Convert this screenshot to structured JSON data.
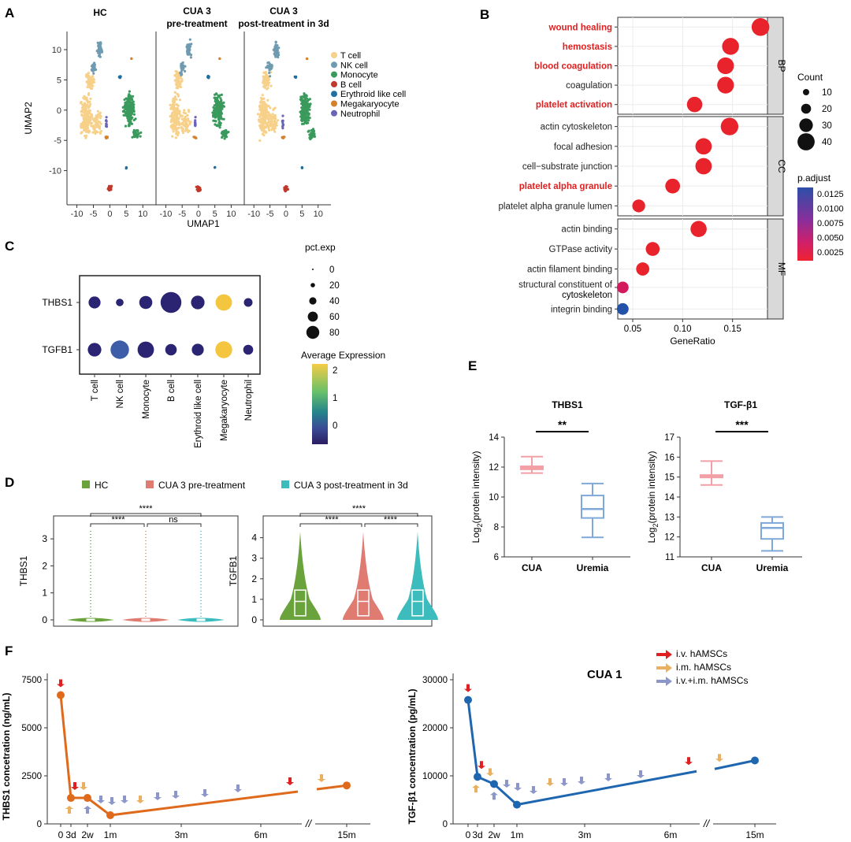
{
  "panels": [
    "A",
    "B",
    "C",
    "D",
    "E",
    "F"
  ],
  "panelA": {
    "titles": [
      "HC",
      "CUA 3",
      "pre-treatment",
      "CUA 3",
      "post-treatment in 3d"
    ],
    "xlabel": "UMAP1",
    "ylabel": "UMAP2",
    "yticks": [
      "10",
      "5",
      "0",
      "-5",
      "-10"
    ],
    "xticks": [
      "-10",
      "-5",
      "0",
      "5",
      "10"
    ],
    "legend": [
      {
        "label": "T cell",
        "color": "#f7d08a"
      },
      {
        "label": "NK cell",
        "color": "#6e9bb0"
      },
      {
        "label": "Monocyte",
        "color": "#3a9a5d"
      },
      {
        "label": "B cell",
        "color": "#c0392b"
      },
      {
        "label": "Erythroid like cell",
        "color": "#1f6fa0"
      },
      {
        "label": "Megakaryocyte",
        "color": "#d3822b"
      },
      {
        "label": "Neutrophil",
        "color": "#6b63b5"
      }
    ]
  },
  "chart_data": [
    {
      "id": "B",
      "type": "scatter",
      "xlabel": "GeneRatio",
      "xticks": [
        "0.05",
        "0.10",
        "0.15"
      ],
      "xlim": [
        0.035,
        0.185
      ],
      "facets": [
        "BP",
        "CC",
        "MF"
      ],
      "terms": [
        {
          "label": "wound healing",
          "facet": "BP",
          "x": 0.178,
          "count": 38,
          "p": 0.0005,
          "red": true
        },
        {
          "label": "hemostasis",
          "facet": "BP",
          "x": 0.148,
          "count": 33,
          "p": 0.0005,
          "red": true
        },
        {
          "label": "blood coagulation",
          "facet": "BP",
          "x": 0.143,
          "count": 32,
          "p": 0.0005,
          "red": true
        },
        {
          "label": "coagulation",
          "facet": "BP",
          "x": 0.143,
          "count": 32,
          "p": 0.0005,
          "red": false
        },
        {
          "label": "platelet activation",
          "facet": "BP",
          "x": 0.112,
          "count": 25,
          "p": 0.0006,
          "red": true
        },
        {
          "label": "actin cytoskeleton",
          "facet": "CC",
          "x": 0.147,
          "count": 37,
          "p": 0.0005,
          "red": false
        },
        {
          "label": "focal adhesion",
          "facet": "CC",
          "x": 0.121,
          "count": 30,
          "p": 0.0005,
          "red": false
        },
        {
          "label": "cell−substrate junction",
          "facet": "CC",
          "x": 0.121,
          "count": 30,
          "p": 0.0005,
          "red": false
        },
        {
          "label": "platelet alpha granule",
          "facet": "CC",
          "x": 0.09,
          "count": 22,
          "p": 0.0006,
          "red": true
        },
        {
          "label": "platelet alpha granule lumen",
          "facet": "CC",
          "x": 0.056,
          "count": 14,
          "p": 0.0008,
          "red": false
        },
        {
          "label": "actin binding",
          "facet": "MF",
          "x": 0.116,
          "count": 29,
          "p": 0.0005,
          "red": false
        },
        {
          "label": "GTPase activity",
          "facet": "MF",
          "x": 0.07,
          "count": 18,
          "p": 0.0008,
          "red": false
        },
        {
          "label": "actin filament binding",
          "facet": "MF",
          "x": 0.06,
          "count": 15,
          "p": 0.001,
          "red": false
        },
        {
          "label": "structural constituent of",
          "facet": "MF",
          "x": 0.04,
          "count": 10,
          "p": 0.003,
          "red": false
        },
        {
          "label": "integrin binding",
          "facet": "MF",
          "x": 0.04,
          "count": 10,
          "p": 0.0125,
          "red": false
        }
      ],
      "term_extra": "cytoskeleton",
      "count_legend": {
        "title": "Count",
        "values": [
          "10",
          "20",
          "30",
          "40"
        ]
      },
      "padj_legend": {
        "title": "p.adjust",
        "values": [
          "0.0125",
          "0.0100",
          "0.0075",
          "0.0050",
          "0.0025"
        ]
      }
    },
    {
      "id": "C",
      "type": "dotplot",
      "genes": [
        "THBS1",
        "TGFB1"
      ],
      "cells": [
        "T cell",
        "NK cell",
        "Monocyte",
        "B cell",
        "Erythroid like cell",
        "Megakaryocyte",
        "Neutrophil"
      ],
      "pct": [
        [
          20,
          5,
          25,
          80,
          28,
          45,
          8
        ],
        [
          28,
          60,
          45,
          18,
          20,
          48,
          12
        ]
      ],
      "avg": [
        [
          -0.3,
          -0.4,
          -0.1,
          -0.5,
          -0.2,
          2.0,
          -0.4
        ],
        [
          -0.2,
          0.0,
          -0.3,
          -0.5,
          -0.1,
          2.0,
          -0.5
        ]
      ],
      "pct_legend": {
        "title": "pct.exp",
        "values": [
          "0",
          "20",
          "40",
          "60",
          "80"
        ]
      },
      "avg_legend": {
        "title": "Average Expression",
        "ticks": [
          "2",
          "1",
          "0"
        ]
      }
    },
    {
      "id": "D",
      "type": "violin",
      "legend": [
        {
          "label": "HC",
          "color": "#6aa23b"
        },
        {
          "label": "CUA 3 pre-treatment",
          "color": "#e07b72"
        },
        {
          "label": "CUA 3 post-treatment in 3d",
          "color": "#3cbcbc"
        }
      ],
      "plots": [
        {
          "ylabel": "THBS1",
          "yticks": [
            "3",
            "2",
            "1",
            "0"
          ],
          "ylim": [
            0,
            4.2
          ],
          "sig": [
            "****",
            "ns",
            "****"
          ]
        },
        {
          "ylabel": "TGFB1",
          "yticks": [
            "4",
            "3",
            "2",
            "1",
            "0"
          ],
          "ylim": [
            0,
            4.7
          ],
          "sig": [
            "****",
            "****",
            "****"
          ]
        }
      ]
    },
    {
      "id": "E",
      "type": "box",
      "plots": [
        {
          "title": "THBS1",
          "ylabel": "Log",
          "ylabel_sub": "2",
          "ylabel_rest": "(protein intensity)",
          "yticks": [
            "14",
            "12",
            "10",
            "8",
            "6"
          ],
          "ylim": [
            6,
            14
          ],
          "sig": "**",
          "groups": [
            {
              "name": "CUA",
              "min": 11.6,
              "q1": 11.85,
              "med": 11.95,
              "q3": 12.05,
              "max": 12.7,
              "color": "#f2a0a6"
            },
            {
              "name": "Uremia",
              "min": 7.3,
              "q1": 8.6,
              "med": 9.2,
              "q3": 10.1,
              "max": 10.9,
              "color": "#7ea9d8"
            }
          ]
        },
        {
          "title": "TGF-β1",
          "ylabel": "Log",
          "ylabel_sub": "2",
          "ylabel_rest": "(protein intensity)",
          "yticks": [
            "17",
            "16",
            "15",
            "14",
            "13",
            "12",
            "11"
          ],
          "ylim": [
            11,
            17
          ],
          "sig": "***",
          "groups": [
            {
              "name": "CUA",
              "min": 14.6,
              "q1": 14.98,
              "med": 15.05,
              "q3": 15.1,
              "max": 15.8,
              "color": "#f2a0a6"
            },
            {
              "name": "Uremia",
              "min": 11.3,
              "q1": 11.9,
              "med": 12.45,
              "q3": 12.7,
              "max": 13.0,
              "color": "#7ea9d8"
            }
          ]
        }
      ]
    },
    {
      "id": "F",
      "type": "line",
      "title": "CUA 1",
      "legend": [
        {
          "label": "i.v. hAMSCs",
          "color": "#e02020"
        },
        {
          "label": "i.m. hAMSCs",
          "color": "#e8b060"
        },
        {
          "label": "i.v.+i.m. hAMSCs",
          "color": "#8d96c8"
        }
      ],
      "xticks": [
        "0",
        "3d",
        "2w",
        "1m",
        "3m",
        "6m",
        "15m"
      ],
      "plots": [
        {
          "ylabel": "THBS1 concetration (ng/mL)",
          "yticks": [
            "7500",
            "5000",
            "2500",
            "0"
          ],
          "ylim": [
            0,
            7500
          ],
          "color": "#e06a1c",
          "points": [
            [
              "0",
              6700
            ],
            [
              "3d",
              1350
            ],
            [
              "2w",
              1350
            ],
            [
              "1m",
              450
            ],
            [
              "15m",
              2000
            ]
          ]
        },
        {
          "ylabel": "TGF-β1 concentration (pg/mL)",
          "yticks": [
            "30000",
            "20000",
            "10000",
            "0"
          ],
          "ylim": [
            0,
            30000
          ],
          "color": "#1f66b0",
          "points": [
            [
              "0",
              25800
            ],
            [
              "3d",
              9800
            ],
            [
              "2w",
              8300
            ],
            [
              "1m",
              4000
            ],
            [
              "15m",
              13200
            ]
          ]
        }
      ],
      "break": "//"
    }
  ]
}
